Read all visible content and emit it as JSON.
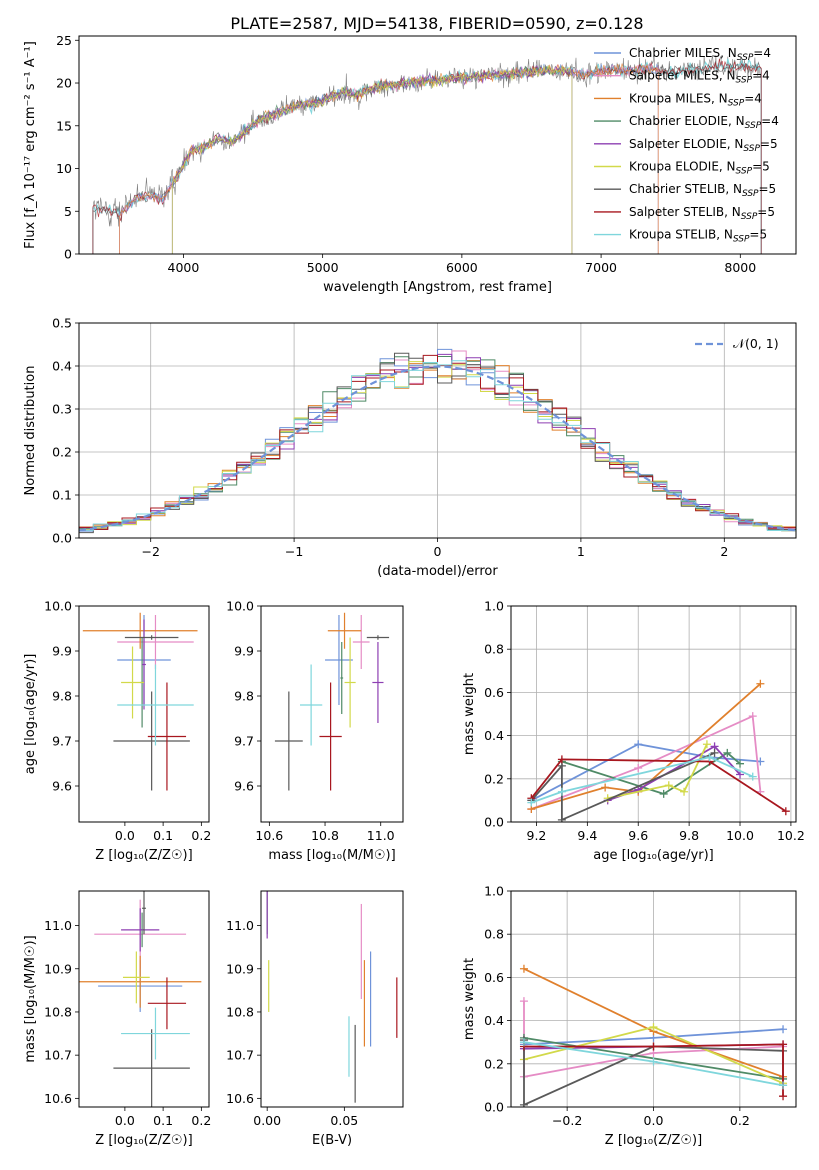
{
  "figure_title": "PLATE=2587, MJD=54138, FIBERID=0590, z=0.128",
  "colors": {
    "chabrier_miles": "#6f93d9",
    "salpeter_miles": "#e58cc5",
    "kroupa_miles": "#e0802d",
    "chabrier_elodie": "#4f8a66",
    "salpeter_elodie": "#8d3fb2",
    "kroupa_elodie": "#d2d94a",
    "chabrier_stelib": "#595959",
    "salpeter_stelib": "#a8171f",
    "kroupa_stelib": "#7fd6dc",
    "gaussian": "#6f93d9",
    "grid": "#b0b0b0"
  },
  "chart_data": [
    {
      "id": "spectrum",
      "type": "line",
      "xlabel": "wavelength [Angstrom, rest frame]",
      "ylabel": "Flux [f_λ 10⁻¹⁷ erg cm⁻² s⁻¹ A⁻¹]",
      "xlim": [
        3250,
        8400
      ],
      "ylim": [
        0,
        25.5
      ],
      "xticks": [
        4000,
        5000,
        6000,
        7000,
        8000
      ],
      "yticks": [
        0,
        5,
        10,
        15,
        20,
        25
      ],
      "grid": false,
      "legend_position": "right",
      "legend": [
        {
          "label": "Chabrier MILES, N",
          "sub": "SSP",
          "tail": "=4",
          "color_key": "chabrier_miles"
        },
        {
          "label": "Salpeter MILES, N",
          "sub": "SSP",
          "tail": "=4",
          "color_key": "salpeter_miles"
        },
        {
          "label": "Kroupa MILES, N",
          "sub": "SSP",
          "tail": "=4",
          "color_key": "kroupa_miles"
        },
        {
          "label": "Chabrier ELODIE, N",
          "sub": "SSP",
          "tail": "=4",
          "color_key": "chabrier_elodie"
        },
        {
          "label": "Salpeter ELODIE, N",
          "sub": "SSP",
          "tail": "=5",
          "color_key": "salpeter_elodie"
        },
        {
          "label": "Kroupa ELODIE, N",
          "sub": "SSP",
          "tail": "=5",
          "color_key": "kroupa_elodie"
        },
        {
          "label": "Chabrier STELIB, N",
          "sub": "SSP",
          "tail": "=5",
          "color_key": "chabrier_stelib"
        },
        {
          "label": "Salpeter STELIB, N",
          "sub": "SSP",
          "tail": "=5",
          "color_key": "salpeter_stelib"
        },
        {
          "label": "Kroupa STELIB, N",
          "sub": "SSP",
          "tail": "=5",
          "color_key": "kroupa_stelib"
        }
      ],
      "continuum": [
        [
          3350,
          5.2
        ],
        [
          3450,
          5.3
        ],
        [
          3550,
          4.8
        ],
        [
          3650,
          6.5
        ],
        [
          3750,
          6.8
        ],
        [
          3850,
          6.5
        ],
        [
          3950,
          9.0
        ],
        [
          4050,
          12.0
        ],
        [
          4150,
          12.5
        ],
        [
          4250,
          13.5
        ],
        [
          4350,
          13.0
        ],
        [
          4450,
          14.5
        ],
        [
          4550,
          15.8
        ],
        [
          4650,
          16.3
        ],
        [
          4750,
          17.0
        ],
        [
          4850,
          17.5
        ],
        [
          4950,
          17.6
        ],
        [
          5050,
          18.3
        ],
        [
          5150,
          19.0
        ],
        [
          5250,
          18.6
        ],
        [
          5350,
          19.3
        ],
        [
          5450,
          19.7
        ],
        [
          5550,
          19.8
        ],
        [
          5650,
          20.1
        ],
        [
          5750,
          20.3
        ],
        [
          5850,
          20.3
        ],
        [
          5950,
          20.7
        ],
        [
          6050,
          20.6
        ],
        [
          6150,
          20.9
        ],
        [
          6250,
          21.0
        ],
        [
          6350,
          21.0
        ],
        [
          6450,
          21.3
        ],
        [
          6550,
          21.5
        ],
        [
          6650,
          21.4
        ],
        [
          6750,
          21.5
        ],
        [
          6850,
          21.0
        ],
        [
          6950,
          21.2
        ],
        [
          7050,
          21.6
        ],
        [
          7150,
          21.4
        ],
        [
          7250,
          21.5
        ],
        [
          7350,
          21.8
        ],
        [
          7450,
          21.4
        ],
        [
          7550,
          21.4
        ],
        [
          7650,
          21.6
        ],
        [
          7750,
          21.8
        ],
        [
          7850,
          22.0
        ],
        [
          7950,
          21.9
        ],
        [
          8050,
          22.0
        ],
        [
          8150,
          21.7
        ]
      ],
      "model_ranges": {
        "chabrier_miles": [
          3540,
          7410
        ],
        "salpeter_miles": [
          3540,
          7410
        ],
        "kroupa_miles": [
          3540,
          7410
        ],
        "chabrier_elodie": [
          3920,
          6790
        ],
        "salpeter_elodie": [
          3920,
          6790
        ],
        "kroupa_elodie": [
          3920,
          6790
        ],
        "chabrier_stelib": [
          3350,
          8150
        ],
        "salpeter_stelib": [
          3350,
          8150
        ],
        "kroupa_stelib": [
          3350,
          8150
        ]
      }
    },
    {
      "id": "residuals",
      "type": "histogram",
      "xlabel": "(data-model)/error",
      "ylabel": "Normed distribution",
      "xlim": [
        -2.5,
        2.5
      ],
      "ylim": [
        0,
        0.5
      ],
      "xticks": [
        -2,
        -1,
        0,
        1,
        2
      ],
      "yticks": [
        0.0,
        0.1,
        0.2,
        0.3,
        0.4,
        0.5
      ],
      "grid": true,
      "legend_position": "top-right",
      "legend": [
        {
          "label": "𝒩(0, 1)",
          "color_key": "gaussian",
          "style": "dashed"
        }
      ],
      "bin_width": 0.1,
      "series_keys": [
        "chabrier_miles",
        "salpeter_miles",
        "kroupa_miles",
        "chabrier_elodie",
        "salpeter_elodie",
        "kroupa_elodie",
        "chabrier_stelib",
        "salpeter_stelib",
        "kroupa_stelib"
      ]
    },
    {
      "id": "age_vs_Z",
      "type": "errorbar",
      "xlabel": "Z [log₁₀(Z/Z☉)]",
      "ylabel": "age  [log₁₀(age/yr)]",
      "xlim": [
        -0.12,
        0.22
      ],
      "ylim": [
        9.52,
        10.0
      ],
      "xticks": [
        0.0,
        0.1,
        0.2
      ],
      "yticks": [
        9.6,
        9.7,
        9.8,
        9.9,
        10.0
      ],
      "grid": false,
      "points": [
        {
          "key": "chabrier_miles",
          "x": 0.05,
          "xerr": 0.07,
          "y": 9.88,
          "yerr": 0.1
        },
        {
          "key": "salpeter_miles",
          "x": 0.08,
          "xerr": 0.1,
          "y": 9.92,
          "yerr": 0.06
        },
        {
          "key": "kroupa_miles",
          "x": 0.04,
          "xerr": 0.15,
          "y": 9.945,
          "yerr": 0.04
        },
        {
          "key": "chabrier_elodie",
          "x": 0.045,
          "xerr": 0.005,
          "y": 9.83,
          "yerr": 0.1
        },
        {
          "key": "salpeter_elodie",
          "x": 0.05,
          "xerr": 0.005,
          "y": 9.87,
          "yerr": 0.1
        },
        {
          "key": "kroupa_elodie",
          "x": 0.02,
          "xerr": 0.03,
          "y": 9.83,
          "yerr": 0.08
        },
        {
          "key": "chabrier_stelib",
          "x": 0.07,
          "xerr": 0.1,
          "y": 9.7,
          "yerr": 0.11
        },
        {
          "key": "salpeter_stelib",
          "x": 0.11,
          "xerr": 0.05,
          "y": 9.71,
          "yerr": 0.12
        },
        {
          "key": "kroupa_stelib",
          "x": 0.08,
          "xerr": 0.1,
          "y": 9.78,
          "yerr": 0.09
        },
        {
          "key": "chabrier_stelib",
          "x": 0.07,
          "xerr": 0.07,
          "y": 9.93,
          "yerr": 0.005
        }
      ]
    },
    {
      "id": "age_vs_mass",
      "type": "errorbar",
      "xlabel": "mass [log₁₀(M/M☉)]",
      "ylabel": "",
      "xlim": [
        10.57,
        11.08
      ],
      "ylim": [
        9.52,
        10.0
      ],
      "xticks": [
        10.6,
        10.8,
        11.0
      ],
      "yticks": [
        9.6,
        9.7,
        9.8,
        9.9,
        10.0
      ],
      "grid": false,
      "points": [
        {
          "key": "chabrier_miles",
          "x": 10.85,
          "xerr": 0.05,
          "y": 9.88,
          "yerr": 0.1
        },
        {
          "key": "salpeter_miles",
          "x": 10.93,
          "xerr": 0.03,
          "y": 9.92,
          "yerr": 0.06
        },
        {
          "key": "kroupa_miles",
          "x": 10.87,
          "xerr": 0.06,
          "y": 9.945,
          "yerr": 0.04
        },
        {
          "key": "chabrier_elodie",
          "x": 10.86,
          "xerr": 0.005,
          "y": 9.84,
          "yerr": 0.08
        },
        {
          "key": "salpeter_elodie",
          "x": 10.99,
          "xerr": 0.02,
          "y": 9.83,
          "yerr": 0.09
        },
        {
          "key": "kroupa_elodie",
          "x": 10.89,
          "xerr": 0.02,
          "y": 9.83,
          "yerr": 0.1
        },
        {
          "key": "chabrier_stelib",
          "x": 10.67,
          "xerr": 0.05,
          "y": 9.7,
          "yerr": 0.11
        },
        {
          "key": "salpeter_stelib",
          "x": 10.82,
          "xerr": 0.04,
          "y": 9.71,
          "yerr": 0.12
        },
        {
          "key": "kroupa_stelib",
          "x": 10.75,
          "xerr": 0.04,
          "y": 9.78,
          "yerr": 0.09
        },
        {
          "key": "chabrier_stelib",
          "x": 10.99,
          "xerr": 0.04,
          "y": 9.93,
          "yerr": 0.005
        }
      ]
    },
    {
      "id": "weight_vs_age",
      "type": "line",
      "xlabel": "age  [log₁₀(age/yr)]",
      "ylabel": "mass weight",
      "xlim": [
        9.1,
        10.22
      ],
      "ylim": [
        0,
        1.0
      ],
      "xticks": [
        9.2,
        9.4,
        9.6,
        9.8,
        10.0,
        10.2
      ],
      "yticks": [
        0.0,
        0.2,
        0.4,
        0.6,
        0.8,
        1.0
      ],
      "grid": true,
      "series": [
        {
          "key": "chabrier_miles",
          "x": [
            9.18,
            9.6,
            9.88,
            10.08
          ],
          "y": [
            0.1,
            0.36,
            0.3,
            0.28
          ]
        },
        {
          "key": "salpeter_miles",
          "x": [
            9.18,
            9.6,
            10.05,
            10.08
          ],
          "y": [
            0.06,
            0.25,
            0.49,
            0.14
          ]
        },
        {
          "key": "kroupa_miles",
          "x": [
            9.18,
            9.47,
            9.6,
            10.08
          ],
          "y": [
            0.06,
            0.16,
            0.14,
            0.64
          ]
        },
        {
          "key": "chabrier_elodie",
          "x": [
            9.3,
            9.7,
            9.95,
            10.0
          ],
          "y": [
            0.28,
            0.13,
            0.32,
            0.27
          ]
        },
        {
          "key": "salpeter_elodie",
          "x": [
            9.48,
            9.6,
            9.9,
            10.0
          ],
          "y": [
            0.1,
            0.15,
            0.35,
            0.22
          ]
        },
        {
          "key": "kroupa_elodie",
          "x": [
            9.48,
            9.72,
            9.78,
            9.87
          ],
          "y": [
            0.11,
            0.17,
            0.14,
            0.36
          ]
        },
        {
          "key": "chabrier_stelib",
          "x": [
            9.18,
            9.3,
            9.3,
            9.9
          ],
          "y": [
            0.1,
            0.26,
            0.01,
            0.32
          ]
        },
        {
          "key": "salpeter_stelib",
          "x": [
            9.18,
            9.3,
            9.88,
            10.18
          ],
          "y": [
            0.11,
            0.29,
            0.28,
            0.05
          ]
        },
        {
          "key": "kroupa_stelib",
          "x": [
            9.18,
            9.3,
            9.88,
            10.05
          ],
          "y": [
            0.09,
            0.14,
            0.3,
            0.21
          ]
        }
      ]
    },
    {
      "id": "mass_vs_Z",
      "type": "errorbar",
      "xlabel": "Z [log₁₀(Z/Z☉)]",
      "ylabel": "mass [log₁₀(M/M☉)]",
      "xlim": [
        -0.12,
        0.22
      ],
      "ylim": [
        10.58,
        11.08
      ],
      "xticks": [
        0.0,
        0.1,
        0.2
      ],
      "yticks": [
        10.6,
        10.7,
        10.8,
        10.9,
        11.0
      ],
      "grid": false,
      "points": [
        {
          "key": "chabrier_miles",
          "x": 0.04,
          "xerr": 0.11,
          "y": 10.86,
          "yerr": 0.06
        },
        {
          "key": "salpeter_miles",
          "x": 0.04,
          "xerr": 0.12,
          "y": 10.98,
          "yerr": 0.08
        },
        {
          "key": "kroupa_miles",
          "x": 0.04,
          "xerr": 0.16,
          "y": 10.87,
          "yerr": 0.06
        },
        {
          "key": "chabrier_elodie",
          "x": 0.045,
          "xerr": 0.005,
          "y": 10.99,
          "yerr": 0.04
        },
        {
          "key": "salpeter_elodie",
          "x": 0.04,
          "xerr": 0.05,
          "y": 10.99,
          "yerr": 0.05
        },
        {
          "key": "kroupa_elodie",
          "x": 0.03,
          "xerr": 0.035,
          "y": 10.88,
          "yerr": 0.06
        },
        {
          "key": "chabrier_stelib",
          "x": 0.07,
          "xerr": 0.1,
          "y": 10.67,
          "yerr": 0.09
        },
        {
          "key": "salpeter_stelib",
          "x": 0.11,
          "xerr": 0.05,
          "y": 10.82,
          "yerr": 0.06
        },
        {
          "key": "kroupa_stelib",
          "x": 0.08,
          "xerr": 0.09,
          "y": 10.75,
          "yerr": 0.06
        },
        {
          "key": "chabrier_stelib",
          "x": 0.05,
          "xerr": 0.005,
          "y": 11.04,
          "yerr": 0.06
        }
      ]
    },
    {
      "id": "mass_vs_ebv",
      "type": "errorbar",
      "xlabel": "E(B-V)",
      "ylabel": "",
      "xlim": [
        -0.004,
        0.088
      ],
      "ylim": [
        10.58,
        11.08
      ],
      "xticks": [
        0.0,
        0.05
      ],
      "yticks": [
        10.6,
        10.7,
        10.8,
        10.9,
        11.0
      ],
      "grid": false,
      "points": [
        {
          "key": "chabrier_miles",
          "x": 0.067,
          "xerr": 0,
          "y": 10.83,
          "yerr": 0.11
        },
        {
          "key": "salpeter_miles",
          "x": 0.061,
          "xerr": 0,
          "y": 10.94,
          "yerr": 0.11
        },
        {
          "key": "kroupa_miles",
          "x": 0.063,
          "xerr": 0,
          "y": 10.82,
          "yerr": 0.1
        },
        {
          "key": "chabrier_elodie",
          "x": 0.0,
          "xerr": 0,
          "y": 11.04,
          "yerr": 0.06
        },
        {
          "key": "salpeter_elodie",
          "x": 0.0,
          "xerr": 0,
          "y": 11.03,
          "yerr": 0.06
        },
        {
          "key": "kroupa_elodie",
          "x": 0.001,
          "xerr": 0,
          "y": 10.86,
          "yerr": 0.06
        },
        {
          "key": "chabrier_stelib",
          "x": 0.057,
          "xerr": 0,
          "y": 10.68,
          "yerr": 0.09
        },
        {
          "key": "salpeter_stelib",
          "x": 0.084,
          "xerr": 0,
          "y": 10.81,
          "yerr": 0.07
        },
        {
          "key": "kroupa_stelib",
          "x": 0.053,
          "xerr": 0,
          "y": 10.72,
          "yerr": 0.07
        }
      ]
    },
    {
      "id": "weight_vs_Z",
      "type": "line",
      "xlabel": "Z [log₁₀(Z/Z☉)]",
      "ylabel": "mass weight",
      "xlim": [
        -0.33,
        0.33
      ],
      "ylim": [
        0,
        1.0
      ],
      "xticks": [
        -0.2,
        0.0,
        0.2
      ],
      "yticks": [
        0.0,
        0.2,
        0.4,
        0.6,
        0.8,
        1.0
      ],
      "grid": true,
      "series": [
        {
          "key": "chabrier_miles",
          "x": [
            -0.3,
            0.0,
            0.3
          ],
          "y": [
            0.29,
            0.32,
            0.36
          ]
        },
        {
          "key": "salpeter_miles",
          "x": [
            -0.3,
            -0.3,
            0.0,
            0.3
          ],
          "y": [
            0.49,
            0.14,
            0.25,
            0.28
          ]
        },
        {
          "key": "kroupa_miles",
          "x": [
            -0.3,
            0.0,
            0.3
          ],
          "y": [
            0.64,
            0.35,
            0.14
          ]
        },
        {
          "key": "chabrier_elodie",
          "x": [
            -0.3,
            0.3
          ],
          "y": [
            0.32,
            0.13
          ]
        },
        {
          "key": "salpeter_elodie",
          "x": [
            -0.3,
            0.3
          ],
          "y": [
            0.27,
            0.29
          ]
        },
        {
          "key": "kroupa_elodie",
          "x": [
            -0.3,
            0.0,
            0.3
          ],
          "y": [
            0.22,
            0.37,
            0.11
          ]
        },
        {
          "key": "chabrier_stelib",
          "x": [
            -0.3,
            -0.3,
            0.0,
            0.3,
            0.3
          ],
          "y": [
            0.31,
            0.01,
            0.28,
            0.26,
            0.1
          ]
        },
        {
          "key": "salpeter_stelib",
          "x": [
            -0.3,
            0.0,
            0.3,
            0.3
          ],
          "y": [
            0.28,
            0.28,
            0.29,
            0.05
          ]
        },
        {
          "key": "kroupa_stelib",
          "x": [
            -0.3,
            0.0,
            0.3
          ],
          "y": [
            0.3,
            0.21,
            0.1
          ]
        }
      ]
    }
  ]
}
